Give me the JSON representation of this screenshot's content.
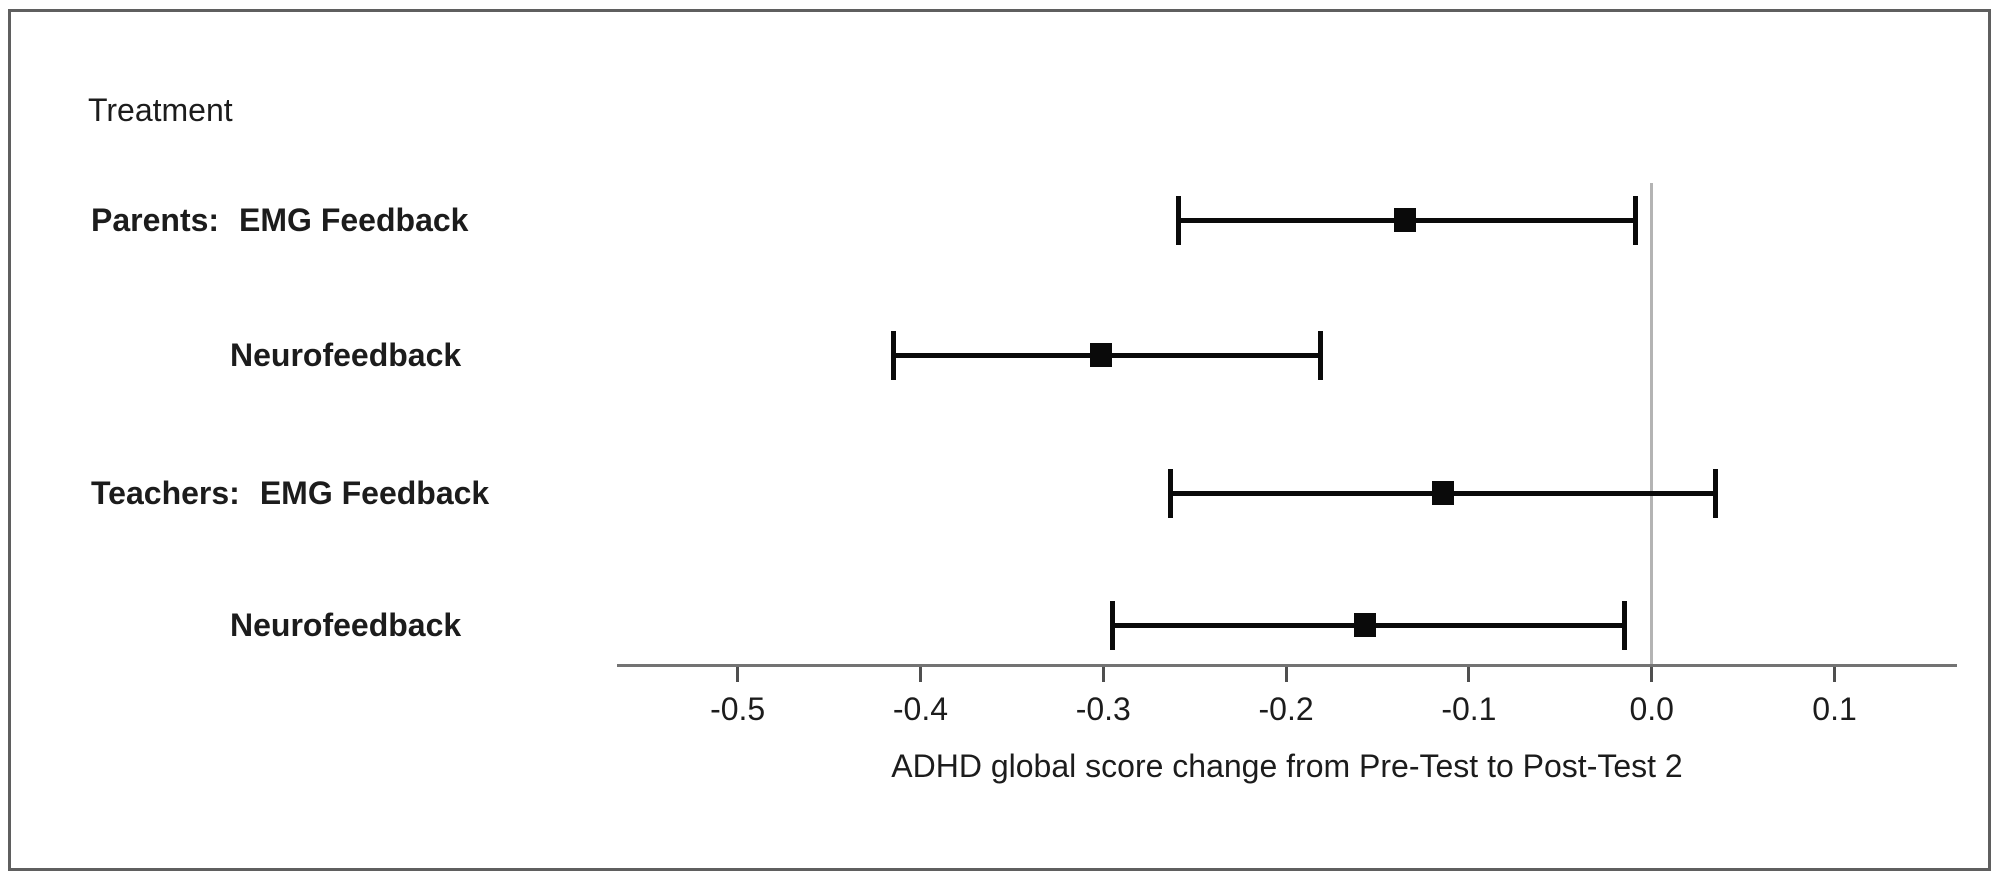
{
  "chart_data": {
    "type": "errorbar",
    "subtype": "forest-plot",
    "title": "",
    "column_header": "Treatment",
    "xlabel": "ADHD global score change from Pre-Test to Post-Test 2",
    "ylabel": "",
    "xlim": [
      -0.566,
      0.167
    ],
    "grid": false,
    "legend": "none",
    "reference_line_x": 0.0,
    "xticks": [
      -0.5,
      -0.4,
      -0.3,
      -0.2,
      -0.1,
      0.0,
      0.1
    ],
    "xtick_labels": [
      "-0.5",
      "-0.4",
      "-0.3",
      "-0.2",
      "-0.1",
      "0.0",
      "0.1"
    ],
    "series": [
      {
        "group": "Parents:",
        "treatment": "EMG Feedback",
        "mean": -0.135,
        "ci_low": -0.259,
        "ci_high": -0.009
      },
      {
        "group": "",
        "treatment": "Neurofeedback",
        "mean": -0.301,
        "ci_low": -0.415,
        "ci_high": -0.181
      },
      {
        "group": "Teachers:",
        "treatment": "EMG Feedback",
        "mean": -0.114,
        "ci_low": -0.263,
        "ci_high": 0.035
      },
      {
        "group": "",
        "treatment": "Neurofeedback",
        "mean": -0.157,
        "ci_low": -0.295,
        "ci_high": -0.015
      }
    ],
    "colors": {
      "marker": "#0a0a0a",
      "error_bar": "#0a0a0a",
      "axis": "#737373",
      "tick": "#4f4f4f",
      "reference_line": "#b4b4b4",
      "frame_border": "#5f5f5f",
      "text": "#1c1c1c",
      "background": "#ffffff"
    }
  }
}
